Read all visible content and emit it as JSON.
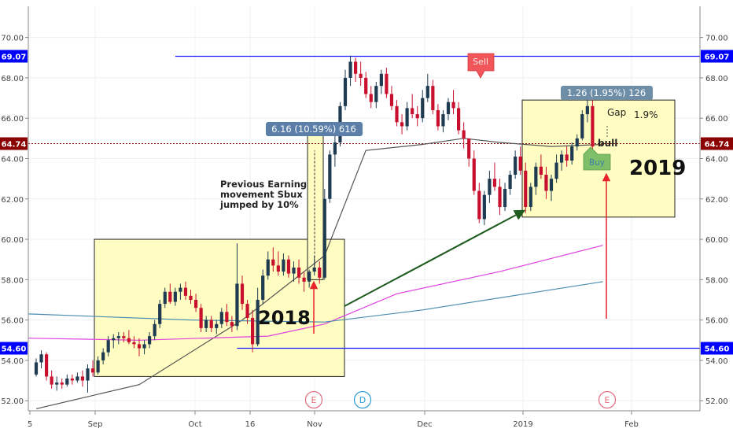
{
  "chart_data": {
    "type": "candlestick",
    "y_ticks": [
      "52.00",
      "54.00",
      "56.00",
      "58.00",
      "60.00",
      "62.00",
      "64.00",
      "66.00",
      "68.00",
      "70.00"
    ],
    "x_ticks": [
      "5",
      "Sep",
      "Oct",
      "16",
      "Nov",
      "Dec",
      "2019",
      "Feb"
    ],
    "ylim": [
      51.5,
      71
    ],
    "price_tags": [
      {
        "label": "69.07",
        "value": 69.07,
        "color": "#0000ff"
      },
      {
        "label": "64.74",
        "value": 64.74,
        "color": "#8b0000"
      },
      {
        "label": "54.60",
        "value": 54.6,
        "color": "#0000ff"
      }
    ],
    "horizontal_lines": [
      {
        "value": 69.07,
        "color": "#1a1aff",
        "from_day": 27,
        "to_day": "end"
      },
      {
        "value": 54.6,
        "color": "#1a1aff",
        "from_day": 2,
        "to_day": "end"
      }
    ],
    "candles": [
      [
        53.3,
        54.1,
        53.2,
        53.9
      ],
      [
        53.9,
        54.5,
        53.6,
        54.3
      ],
      [
        54.3,
        54.4,
        53.0,
        53.2
      ],
      [
        53.2,
        53.5,
        52.6,
        52.8
      ],
      [
        52.8,
        53.2,
        52.5,
        52.9
      ],
      [
        52.9,
        53.1,
        52.6,
        52.8
      ],
      [
        52.8,
        53.3,
        52.7,
        53.1
      ],
      [
        53.1,
        53.3,
        52.8,
        53.0
      ],
      [
        53.0,
        53.4,
        52.9,
        53.2
      ],
      [
        53.2,
        53.5,
        52.7,
        53.0
      ],
      [
        53.0,
        53.8,
        52.4,
        53.6
      ],
      [
        53.6,
        54.0,
        53.2,
        53.4
      ],
      [
        53.4,
        54.2,
        53.3,
        54.0
      ],
      [
        54.0,
        54.6,
        53.8,
        54.4
      ],
      [
        54.4,
        55.2,
        54.2,
        55.0
      ],
      [
        55.0,
        55.3,
        54.6,
        55.1
      ],
      [
        55.1,
        55.4,
        54.8,
        55.2
      ],
      [
        55.2,
        55.4,
        54.9,
        55.1
      ],
      [
        55.1,
        55.5,
        54.8,
        54.9
      ],
      [
        54.9,
        55.2,
        54.6,
        54.8
      ],
      [
        54.8,
        55.1,
        54.2,
        54.6
      ],
      [
        54.6,
        55.0,
        54.3,
        54.8
      ],
      [
        54.8,
        55.4,
        54.6,
        55.2
      ],
      [
        55.2,
        56.0,
        55.0,
        55.8
      ],
      [
        55.8,
        57.0,
        55.6,
        56.8
      ],
      [
        56.8,
        57.6,
        56.6,
        57.4
      ],
      [
        57.4,
        57.8,
        56.8,
        56.9
      ],
      [
        56.9,
        57.6,
        56.7,
        57.4
      ],
      [
        57.4,
        57.8,
        57.0,
        57.6
      ],
      [
        57.6,
        57.9,
        57.0,
        57.2
      ],
      [
        57.2,
        57.5,
        56.8,
        57.0
      ],
      [
        57.0,
        57.3,
        56.4,
        56.6
      ],
      [
        56.6,
        56.8,
        55.4,
        55.6
      ],
      [
        55.6,
        56.2,
        55.4,
        56.0
      ],
      [
        56.0,
        56.2,
        55.4,
        55.6
      ],
      [
        55.6,
        56.0,
        55.3,
        55.8
      ],
      [
        55.8,
        56.6,
        55.6,
        56.4
      ],
      [
        56.4,
        56.8,
        55.7,
        55.9
      ],
      [
        55.9,
        56.2,
        55.4,
        55.7
      ],
      [
        55.7,
        59.8,
        55.5,
        57.8
      ],
      [
        57.8,
        58.2,
        56.5,
        56.8
      ],
      [
        56.8,
        57.0,
        55.8,
        56.1
      ],
      [
        56.1,
        56.5,
        54.4,
        54.8
      ],
      [
        54.8,
        57.6,
        54.7,
        57.0
      ],
      [
        57.0,
        58.5,
        56.8,
        58.2
      ],
      [
        58.2,
        59.4,
        58.0,
        59.0
      ],
      [
        59.0,
        59.6,
        58.4,
        58.7
      ],
      [
        58.7,
        59.4,
        58.2,
        58.4
      ],
      [
        58.4,
        59.3,
        58.2,
        59.0
      ],
      [
        59.0,
        59.2,
        58.1,
        58.3
      ],
      [
        58.3,
        58.9,
        57.9,
        58.6
      ],
      [
        58.6,
        59.0,
        57.8,
        58.1
      ],
      [
        58.1,
        58.4,
        57.4,
        57.9
      ],
      [
        57.9,
        58.5,
        57.6,
        58.4
      ],
      [
        58.4,
        59.2,
        58.2,
        58.6
      ],
      [
        58.6,
        58.9,
        57.8,
        58.1
      ],
      [
        58.1,
        62.5,
        58.0,
        62.0
      ],
      [
        62.0,
        64.4,
        61.8,
        64.2
      ],
      [
        64.2,
        65.6,
        63.6,
        64.8
      ],
      [
        64.8,
        66.8,
        64.6,
        66.6
      ],
      [
        66.6,
        68.4,
        66.4,
        68.0
      ],
      [
        68.0,
        69.1,
        67.6,
        68.8
      ],
      [
        68.8,
        69.0,
        67.8,
        68.2
      ],
      [
        68.2,
        68.8,
        67.6,
        68.0
      ],
      [
        68.0,
        68.3,
        67.0,
        67.2
      ],
      [
        67.2,
        67.6,
        66.5,
        66.8
      ],
      [
        66.8,
        67.8,
        66.5,
        67.6
      ],
      [
        67.6,
        68.4,
        67.2,
        68.2
      ],
      [
        68.2,
        68.5,
        67.0,
        67.2
      ],
      [
        67.2,
        67.6,
        66.4,
        66.6
      ],
      [
        66.6,
        66.9,
        65.6,
        65.8
      ],
      [
        65.8,
        66.2,
        65.2,
        65.6
      ],
      [
        65.6,
        66.8,
        65.4,
        66.5
      ],
      [
        66.5,
        67.2,
        66.0,
        66.2
      ],
      [
        66.2,
        66.6,
        65.6,
        66.0
      ],
      [
        66.0,
        67.4,
        65.8,
        67.0
      ],
      [
        67.0,
        68.2,
        66.8,
        67.6
      ],
      [
        67.6,
        67.9,
        66.2,
        66.4
      ],
      [
        66.4,
        66.7,
        65.4,
        65.6
      ],
      [
        65.6,
        66.4,
        65.3,
        66.2
      ],
      [
        66.2,
        67.0,
        65.9,
        66.8
      ],
      [
        66.8,
        67.4,
        66.2,
        66.5
      ],
      [
        66.5,
        66.8,
        65.2,
        65.4
      ],
      [
        65.4,
        65.8,
        64.5,
        65.0
      ],
      [
        65.0,
        64.9,
        63.6,
        64.0
      ],
      [
        64.0,
        64.4,
        62.2,
        62.4
      ],
      [
        62.4,
        62.8,
        60.8,
        61.0
      ],
      [
        61.0,
        62.4,
        60.7,
        62.2
      ],
      [
        62.2,
        63.4,
        61.8,
        63.0
      ],
      [
        63.0,
        63.8,
        62.4,
        62.6
      ],
      [
        62.6,
        63.0,
        61.2,
        61.6
      ],
      [
        61.6,
        62.8,
        61.4,
        62.5
      ],
      [
        62.5,
        63.4,
        62.2,
        63.2
      ],
      [
        63.2,
        64.4,
        63.0,
        64.1
      ],
      [
        64.1,
        64.6,
        63.2,
        63.4
      ],
      [
        63.4,
        63.8,
        61.3,
        61.6
      ],
      [
        61.6,
        62.8,
        61.4,
        62.6
      ],
      [
        62.6,
        63.8,
        62.2,
        63.6
      ],
      [
        63.6,
        64.2,
        63.0,
        63.2
      ],
      [
        63.2,
        63.6,
        62.0,
        62.4
      ],
      [
        62.4,
        63.2,
        61.9,
        63.0
      ],
      [
        63.0,
        64.2,
        62.8,
        63.8
      ],
      [
        63.8,
        64.4,
        63.4,
        64.2
      ],
      [
        64.2,
        64.6,
        63.6,
        63.9
      ],
      [
        63.9,
        64.8,
        63.7,
        64.6
      ],
      [
        64.6,
        65.2,
        64.4,
        65.0
      ],
      [
        65.0,
        66.4,
        64.9,
        66.2
      ],
      [
        66.2,
        66.9,
        65.8,
        66.6
      ],
      [
        66.6,
        66.9,
        64.4,
        64.6
      ]
    ],
    "series": [
      {
        "name": "",
        "color": "#555555",
        "values": [
          [
            0,
            51.6
          ],
          [
            20,
            52.8
          ],
          [
            40,
            56.0
          ],
          [
            56,
            59.2
          ],
          [
            64,
            64.4
          ],
          [
            75,
            64.7
          ],
          [
            83,
            65.0
          ],
          [
            90,
            64.8
          ],
          [
            100,
            64.6
          ],
          [
            110,
            64.7
          ]
        ]
      },
      {
        "name": "",
        "color": "#e040e0",
        "values": [
          [
            -5,
            55.1
          ],
          [
            20,
            55.0
          ],
          [
            45,
            55.2
          ],
          [
            56,
            55.8
          ],
          [
            70,
            57.3
          ],
          [
            90,
            58.4
          ],
          [
            110,
            59.7
          ]
        ]
      },
      {
        "name": "",
        "color": "#4a8db0",
        "values": [
          [
            -5,
            56.3
          ],
          [
            30,
            56.0
          ],
          [
            56,
            55.9
          ],
          [
            75,
            56.5
          ],
          [
            95,
            57.3
          ],
          [
            110,
            57.9
          ]
        ]
      }
    ],
    "annotations": {
      "label_2018": "2018",
      "label_2019": "2019",
      "previous_earning": [
        "Previous Earning",
        "movement Sbux",
        "jumped by 10%"
      ],
      "measure_left": "6.16 (10.59%) 616",
      "measure_right": "1.26 (1.95%) 126",
      "gap": "Gap",
      "gap_pct": "1.9%",
      "bull": "bull",
      "sell": "Sell",
      "buy": "Buy",
      "events": [
        "E",
        "D",
        "E"
      ]
    },
    "colors": {
      "up": "#1e3b52",
      "down": "#c8102e",
      "box": "#fffdc2"
    }
  }
}
